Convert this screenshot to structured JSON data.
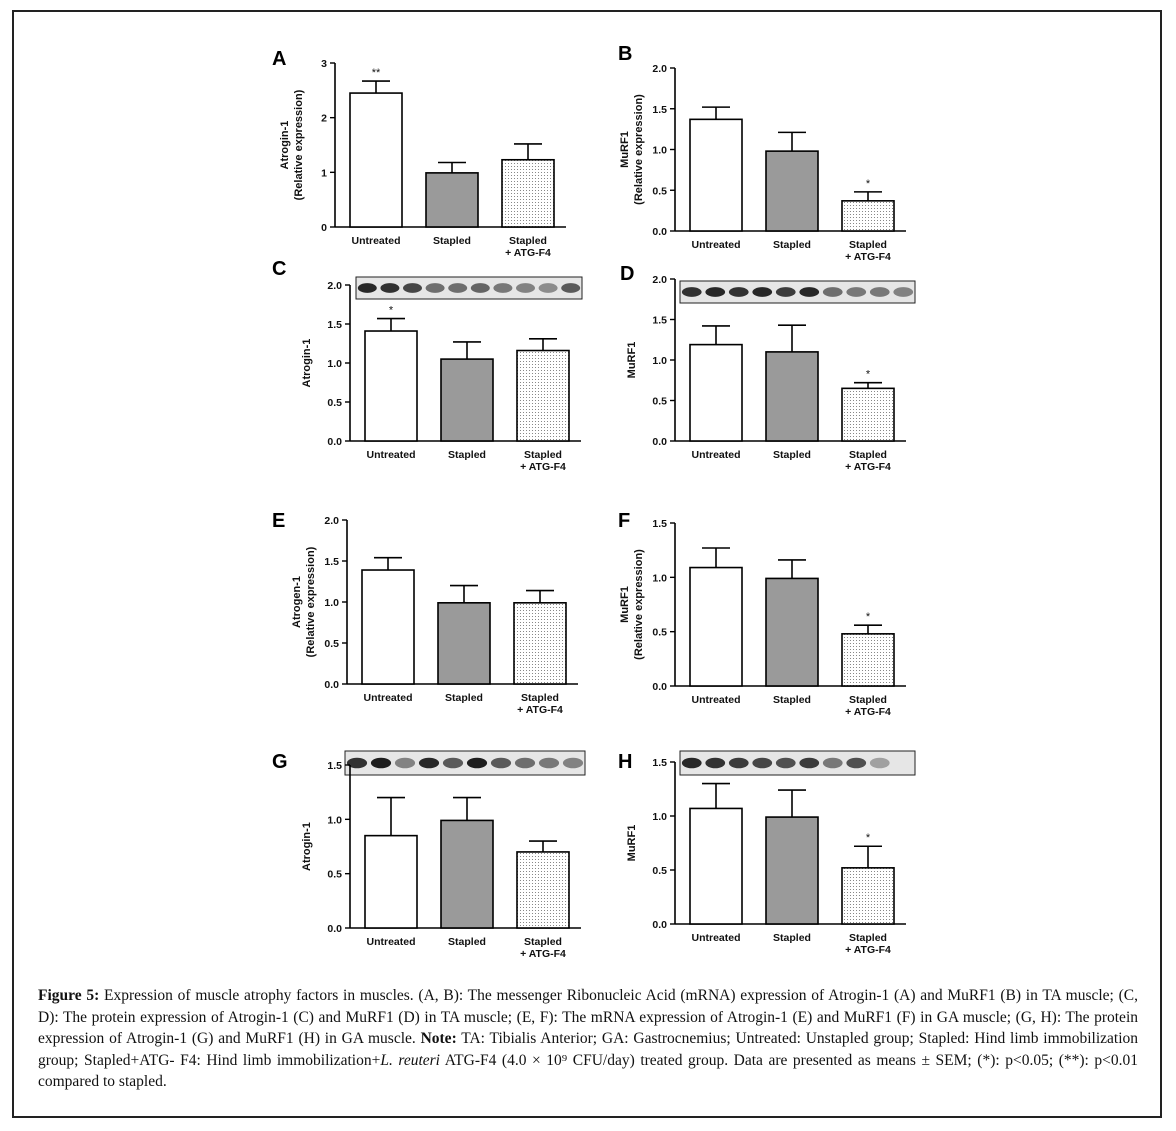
{
  "chart_data": [
    {
      "panel": "A",
      "type": "bar",
      "categories": [
        "Untreated",
        "Stapled",
        "Stapled\n+ ATG-F4"
      ],
      "values": [
        2.45,
        0.99,
        1.23
      ],
      "errors": [
        0.22,
        0.19,
        0.29
      ],
      "significance": [
        "**",
        "",
        ""
      ],
      "ylabel": [
        "Atrogin-1",
        "(Relative expression)"
      ],
      "ylim": [
        0,
        3
      ],
      "ticks": [
        "0",
        "1",
        "2",
        "3"
      ],
      "tick_values": [
        0,
        1,
        2,
        3
      ],
      "blot": false
    },
    {
      "panel": "B",
      "type": "bar",
      "categories": [
        "Untreated",
        "Stapled",
        "Stapled\n+ ATG-F4"
      ],
      "values": [
        1.37,
        0.98,
        0.37
      ],
      "errors": [
        0.15,
        0.23,
        0.11
      ],
      "significance": [
        "",
        "",
        "*"
      ],
      "ylabel": [
        "MuRF1",
        "(Relative expression)"
      ],
      "ylim": [
        0,
        2
      ],
      "ticks": [
        "0.0",
        "0.5",
        "1.0",
        "1.5",
        "2.0"
      ],
      "tick_values": [
        0,
        0.5,
        1,
        1.5,
        2
      ],
      "blot": false
    },
    {
      "panel": "C",
      "type": "bar",
      "categories": [
        "Untreated",
        "Stapled",
        "Stapled\n+ ATG-F4"
      ],
      "values": [
        1.41,
        1.05,
        1.16
      ],
      "errors": [
        0.16,
        0.22,
        0.15
      ],
      "significance": [
        "*",
        "",
        ""
      ],
      "ylabel": [
        "Atrogin-1"
      ],
      "ylim": [
        0,
        2
      ],
      "ticks": [
        "0.0",
        "0.5",
        "1.0",
        "1.5",
        "2.0"
      ],
      "tick_values": [
        0,
        0.5,
        1,
        1.5,
        2
      ],
      "blot": true
    },
    {
      "panel": "D",
      "type": "bar",
      "categories": [
        "Untreated",
        "Stapled",
        "Stapled\n+ ATG-F4"
      ],
      "values": [
        1.19,
        1.1,
        0.65
      ],
      "errors": [
        0.23,
        0.33,
        0.07
      ],
      "significance": [
        "",
        "",
        "*"
      ],
      "ylabel": [
        "MuRF1"
      ],
      "ylim": [
        0,
        2
      ],
      "ticks": [
        "0.0",
        "0.5",
        "1.0",
        "1.5",
        "2.0"
      ],
      "tick_values": [
        0,
        0.5,
        1,
        1.5,
        2
      ],
      "blot": true
    },
    {
      "panel": "E",
      "type": "bar",
      "categories": [
        "Untreated",
        "Stapled",
        "Stapled\n+ ATG-F4"
      ],
      "values": [
        1.39,
        0.99,
        0.99
      ],
      "errors": [
        0.15,
        0.21,
        0.15
      ],
      "significance": [
        "",
        "",
        ""
      ],
      "ylabel": [
        "Atrogen-1",
        "(Relative expression)"
      ],
      "ylim": [
        0,
        2
      ],
      "ticks": [
        "0.0",
        "0.5",
        "1.0",
        "1.5",
        "2.0"
      ],
      "tick_values": [
        0,
        0.5,
        1,
        1.5,
        2
      ],
      "blot": false
    },
    {
      "panel": "F",
      "type": "bar",
      "categories": [
        "Untreated",
        "Stapled",
        "Stapled\n+ ATG-F4"
      ],
      "values": [
        1.09,
        0.99,
        0.48
      ],
      "errors": [
        0.18,
        0.17,
        0.08
      ],
      "significance": [
        "",
        "",
        "*"
      ],
      "ylabel": [
        "MuRF1",
        "(Relative expression)"
      ],
      "ylim": [
        0,
        1.5
      ],
      "ticks": [
        "0.0",
        "0.5",
        "1.0",
        "1.5"
      ],
      "tick_values": [
        0,
        0.5,
        1,
        1.5
      ],
      "blot": false
    },
    {
      "panel": "G",
      "type": "bar",
      "categories": [
        "Untreated",
        "Stapled",
        "Stapled\n+ ATG-F4"
      ],
      "values": [
        0.85,
        0.99,
        0.7
      ],
      "errors": [
        0.35,
        0.21,
        0.1
      ],
      "significance": [
        "",
        "",
        ""
      ],
      "ylabel": [
        "Atrogin-1"
      ],
      "ylim": [
        0,
        1.5
      ],
      "ticks": [
        "0.0",
        "0.5",
        "1.0",
        "1.5"
      ],
      "tick_values": [
        0,
        0.5,
        1,
        1.5
      ],
      "blot": true
    },
    {
      "panel": "H",
      "type": "bar",
      "categories": [
        "Untreated",
        "Stapled",
        "Stapled\n+ ATG-F4"
      ],
      "values": [
        1.07,
        0.99,
        0.52
      ],
      "errors": [
        0.23,
        0.25,
        0.2
      ],
      "significance": [
        "",
        "",
        "*"
      ],
      "ylabel": [
        "MuRF1"
      ],
      "ylim": [
        0,
        1.5
      ],
      "ticks": [
        "0.0",
        "0.5",
        "1.0",
        "1.5"
      ],
      "tick_values": [
        0,
        0.5,
        1,
        1.5
      ],
      "blot": true
    }
  ],
  "caption": {
    "figure_label": "Figure 5:",
    "text_1": " Expression of muscle atrophy factors in muscles. (A, B): The messenger Ribonucleic Acid (mRNA) expression of Atrogin-1 (A) and MuRF1 (B) in TA muscle; (C, D): The protein expression of Atrogin-1 (C) and MuRF1 (D) in TA muscle; (E, F): The mRNA expression of Atrogin-1 (E) and MuRF1 (F) in GA muscle; (G, H): The protein expression of Atrogin-1 (G) and MuRF1 (H) in GA muscle. ",
    "note_label": "Note:",
    "text_2": " TA: Tibialis Anterior; GA: Gastrocnemius; Untreated: Unstapled group; Stapled: Hind limb immobilization group; Stapled+ATG- F4: Hind limb immobilization+",
    "species": "L. reuteri",
    "text_3": " ATG-F4 (4.0 × 10⁹ CFU/day) treated group. Data are presented as means ± SEM; (*): p<0.05; (**): p<0.01 compared to stapled."
  }
}
